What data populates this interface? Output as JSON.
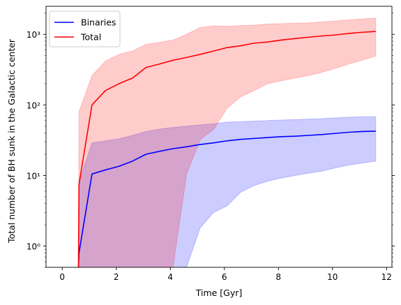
{
  "chart_data": {
    "type": "line",
    "xlabel": "Time [Gyr]",
    "ylabel": "Total number of BH sunk in the Galactic center",
    "yscale": "log",
    "xlim": [
      -0.6,
      12.2
    ],
    "ylim": [
      0.5,
      2500
    ],
    "x_ticks": [
      0,
      2,
      4,
      6,
      8,
      10,
      12
    ],
    "x_tick_labels": [
      "0",
      "2",
      "4",
      "6",
      "8",
      "10",
      "12"
    ],
    "y_ticks": [
      1,
      10,
      100,
      1000
    ],
    "y_tick_labels": [
      "10⁰",
      "10¹",
      "10²",
      "10³"
    ],
    "legend_position": "upper-left",
    "grid": false,
    "series": [
      {
        "name": "Binaries",
        "color": "#0000ff",
        "band_color": "#0000ff",
        "band_opacity": 0.2,
        "x": [
          0.6,
          0.62,
          1.1,
          1.6,
          2.1,
          2.6,
          3.1,
          3.6,
          4.1,
          4.6,
          5.1,
          5.6,
          6.1,
          6.6,
          7.1,
          7.6,
          8.1,
          8.6,
          9.1,
          9.6,
          10.1,
          10.6,
          11.1,
          11.6
        ],
        "values": [
          0.5,
          0.8,
          10.5,
          12,
          13.5,
          16,
          20,
          22,
          24,
          25.5,
          27.5,
          29,
          31,
          32.5,
          33.5,
          34.5,
          35.5,
          36,
          37,
          38,
          39.5,
          41,
          42,
          42.5
        ],
        "lower": [
          0.5,
          0.5,
          0.5,
          0.5,
          0.5,
          0.5,
          0.5,
          0.5,
          0.5,
          0.5,
          1.8,
          3.0,
          3.7,
          5.8,
          7.2,
          8.3,
          9.2,
          10.0,
          10.8,
          11.5,
          12.8,
          14.0,
          15.0,
          16.0
        ],
        "upper": [
          0.5,
          8,
          29,
          31,
          33,
          37,
          42,
          45.5,
          48,
          50,
          52,
          54,
          57,
          58,
          59,
          60,
          61,
          62,
          63,
          64,
          65.5,
          67,
          68,
          68
        ]
      },
      {
        "name": "Total",
        "color": "#ff0000",
        "band_color": "#ff0000",
        "band_opacity": 0.2,
        "x": [
          0.6,
          0.62,
          1.1,
          1.6,
          2.1,
          2.6,
          3.1,
          3.6,
          4.1,
          4.6,
          5.1,
          5.6,
          6.1,
          6.6,
          7.1,
          7.6,
          8.1,
          8.6,
          9.1,
          9.6,
          10.1,
          10.6,
          11.1,
          11.6
        ],
        "values": [
          0.5,
          7.5,
          100,
          160,
          200,
          240,
          340,
          380,
          430,
          470,
          520,
          580,
          650,
          690,
          750,
          780,
          830,
          870,
          910,
          950,
          980,
          1030,
          1070,
          1100
        ],
        "lower": [
          0.5,
          0.5,
          0.5,
          0.5,
          0.5,
          0.5,
          0.5,
          0.5,
          0.5,
          10.5,
          32,
          45,
          90,
          130,
          160,
          200,
          220,
          240,
          260,
          290,
          330,
          380,
          430,
          490
        ],
        "upper": [
          0.5,
          80,
          260,
          420,
          520,
          580,
          720,
          770,
          830,
          1000,
          1250,
          1320,
          1300,
          1330,
          1350,
          1400,
          1420,
          1440,
          1450,
          1500,
          1550,
          1600,
          1650,
          1700
        ]
      }
    ]
  }
}
